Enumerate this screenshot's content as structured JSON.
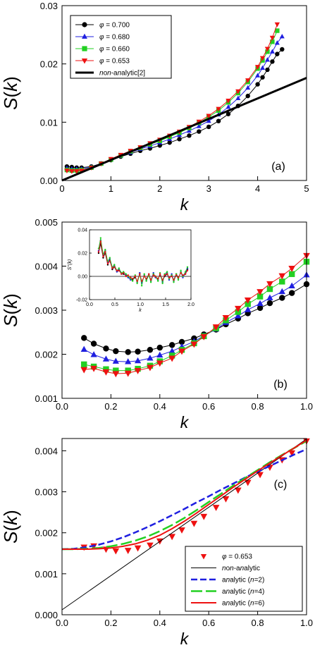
{
  "chart_data": [
    {
      "type": "line",
      "panel_label": "(a)",
      "xlabel": "k",
      "ylabel": "S(k)",
      "xlim": [
        0,
        5
      ],
      "ylim": [
        0,
        0.03
      ],
      "xticks": [
        "0",
        "1",
        "2",
        "3",
        "4",
        "5"
      ],
      "yticks": [
        "0.00",
        "0.01",
        "0.02",
        "0.03"
      ],
      "legend_position": "top-left",
      "series": [
        {
          "name": "φ = 0.700",
          "color": "#000000",
          "marker": "circle",
          "x": [
            0.1,
            0.2,
            0.3,
            0.4,
            0.6,
            0.8,
            1.0,
            1.2,
            1.4,
            1.6,
            1.8,
            2.0,
            2.2,
            2.4,
            2.6,
            2.8,
            3.0,
            3.2,
            3.4,
            3.6,
            3.8,
            4.0,
            4.1,
            4.2,
            4.3,
            4.4,
            4.5
          ],
          "y": [
            0.0024,
            0.0023,
            0.0022,
            0.0022,
            0.0024,
            0.0029,
            0.0035,
            0.0041,
            0.0046,
            0.0051,
            0.0055,
            0.006,
            0.0065,
            0.0071,
            0.0077,
            0.0084,
            0.0092,
            0.0102,
            0.0114,
            0.0128,
            0.0145,
            0.0165,
            0.0177,
            0.019,
            0.0204,
            0.0217,
            0.0225
          ]
        },
        {
          "name": "φ = 0.680",
          "color": "#1f1fe0",
          "marker": "triangle-up",
          "x": [
            0.1,
            0.2,
            0.3,
            0.4,
            0.6,
            0.8,
            1.0,
            1.2,
            1.4,
            1.6,
            1.8,
            2.0,
            2.2,
            2.4,
            2.6,
            2.8,
            3.0,
            3.2,
            3.4,
            3.6,
            3.8,
            4.0,
            4.1,
            4.2,
            4.3,
            4.4,
            4.5
          ],
          "y": [
            0.0021,
            0.002,
            0.002,
            0.002,
            0.0023,
            0.0029,
            0.0036,
            0.0042,
            0.0048,
            0.0054,
            0.0059,
            0.0065,
            0.0071,
            0.0078,
            0.0085,
            0.0093,
            0.0102,
            0.0113,
            0.0126,
            0.0141,
            0.0159,
            0.018,
            0.0193,
            0.0207,
            0.0221,
            0.0236,
            0.0247
          ]
        },
        {
          "name": "φ = 0.660",
          "color": "#22d022",
          "marker": "square",
          "x": [
            0.1,
            0.2,
            0.3,
            0.4,
            0.6,
            0.8,
            1.0,
            1.2,
            1.4,
            1.6,
            1.8,
            2.0,
            2.2,
            2.4,
            2.6,
            2.8,
            3.0,
            3.2,
            3.4,
            3.6,
            3.8,
            4.0,
            4.1,
            4.2,
            4.3,
            4.4
          ],
          "y": [
            0.0018,
            0.0017,
            0.0017,
            0.0018,
            0.0022,
            0.0029,
            0.0036,
            0.0043,
            0.005,
            0.0056,
            0.0062,
            0.0068,
            0.0075,
            0.0082,
            0.009,
            0.0099,
            0.0109,
            0.012,
            0.0134,
            0.015,
            0.0169,
            0.0192,
            0.0206,
            0.0221,
            0.0238,
            0.0257
          ]
        },
        {
          "name": "φ = 0.653",
          "color": "#ee1111",
          "marker": "triangle-down",
          "x": [
            0.1,
            0.2,
            0.3,
            0.4,
            0.6,
            0.8,
            1.0,
            1.2,
            1.4,
            1.6,
            1.8,
            2.0,
            2.2,
            2.4,
            2.6,
            2.8,
            3.0,
            3.2,
            3.4,
            3.6,
            3.8,
            4.0,
            4.1,
            4.2,
            4.3,
            4.4
          ],
          "y": [
            0.0017,
            0.0016,
            0.0016,
            0.0017,
            0.0022,
            0.0029,
            0.0037,
            0.0044,
            0.0051,
            0.0057,
            0.0064,
            0.007,
            0.0077,
            0.0084,
            0.0092,
            0.0101,
            0.0111,
            0.0123,
            0.0137,
            0.0153,
            0.0172,
            0.0195,
            0.021,
            0.0226,
            0.0245,
            0.0268
          ]
        },
        {
          "name": "non-analytic[2]",
          "color": "#000000",
          "marker": "none",
          "linewidth": 3,
          "x": [
            0,
            5
          ],
          "y": [
            0.0,
            0.0176
          ]
        }
      ]
    },
    {
      "type": "line",
      "panel_label": "(b)",
      "xlabel": "k",
      "ylabel": "S(k)",
      "xlim": [
        0,
        1
      ],
      "ylim": [
        0.001,
        0.005
      ],
      "xticks": [
        "0.0",
        "0.2",
        "0.4",
        "0.6",
        "0.8",
        "1.0"
      ],
      "yticks": [
        "0.001",
        "0.002",
        "0.003",
        "0.004",
        "0.005"
      ],
      "series": [
        {
          "name": "φ = 0.700",
          "color": "#000000",
          "marker": "circle",
          "x": [
            0.09,
            0.13,
            0.18,
            0.22,
            0.27,
            0.31,
            0.36,
            0.4,
            0.45,
            0.49,
            0.54,
            0.58,
            0.63,
            0.67,
            0.72,
            0.76,
            0.81,
            0.85,
            0.9,
            0.94,
            1.0
          ],
          "y": [
            0.00237,
            0.00224,
            0.00213,
            0.00207,
            0.00205,
            0.00206,
            0.0021,
            0.00215,
            0.00221,
            0.00228,
            0.00236,
            0.00245,
            0.00256,
            0.00268,
            0.00281,
            0.00293,
            0.00305,
            0.00316,
            0.00328,
            0.00339,
            0.00359
          ]
        },
        {
          "name": "φ = 0.680",
          "color": "#1f1fe0",
          "marker": "triangle-up",
          "x": [
            0.09,
            0.13,
            0.18,
            0.22,
            0.27,
            0.31,
            0.36,
            0.4,
            0.45,
            0.49,
            0.54,
            0.58,
            0.63,
            0.67,
            0.72,
            0.76,
            0.81,
            0.85,
            0.9,
            0.94,
            1.0
          ],
          "y": [
            0.00211,
            0.00199,
            0.00189,
            0.00184,
            0.00183,
            0.00185,
            0.00191,
            0.00198,
            0.00207,
            0.00217,
            0.00229,
            0.00242,
            0.00257,
            0.00272,
            0.00287,
            0.00301,
            0.00315,
            0.00328,
            0.00342,
            0.00355,
            0.0038
          ]
        },
        {
          "name": "φ = 0.660",
          "color": "#22d022",
          "marker": "square",
          "x": [
            0.09,
            0.13,
            0.18,
            0.22,
            0.27,
            0.31,
            0.36,
            0.4,
            0.45,
            0.49,
            0.54,
            0.58,
            0.63,
            0.67,
            0.72,
            0.76,
            0.81,
            0.85,
            0.9,
            0.94,
            1.0
          ],
          "y": [
            0.00177,
            0.00172,
            0.00166,
            0.00163,
            0.00163,
            0.00167,
            0.00174,
            0.00184,
            0.00197,
            0.0021,
            0.00225,
            0.00241,
            0.00259,
            0.00277,
            0.00296,
            0.00314,
            0.00331,
            0.00348,
            0.00365,
            0.00382,
            0.0041
          ]
        },
        {
          "name": "φ = 0.653",
          "color": "#ee1111",
          "marker": "triangle-down",
          "x": [
            0.09,
            0.13,
            0.18,
            0.22,
            0.27,
            0.31,
            0.36,
            0.4,
            0.45,
            0.49,
            0.54,
            0.58,
            0.63,
            0.67,
            0.72,
            0.76,
            0.81,
            0.85,
            0.9,
            0.94,
            1.0
          ],
          "y": [
            0.00165,
            0.00168,
            0.0016,
            0.00156,
            0.00157,
            0.00163,
            0.0017,
            0.0018,
            0.00191,
            0.00207,
            0.00223,
            0.0024,
            0.00262,
            0.00283,
            0.00304,
            0.00323,
            0.00342,
            0.0036,
            0.00378,
            0.00395,
            0.00424
          ]
        }
      ],
      "inset": {
        "type": "line",
        "xlabel": "k",
        "ylabel": "S''(k)",
        "xlim": [
          0,
          2
        ],
        "ylim": [
          -0.02,
          0.04
        ],
        "xticks": [
          "0.0",
          "0.5",
          "1.0",
          "1.5",
          "2.0"
        ],
        "yticks": [
          "-0.02",
          "0.00",
          "0.02",
          "0.04"
        ],
        "x": [
          0.18,
          0.22,
          0.27,
          0.31,
          0.36,
          0.4,
          0.45,
          0.49,
          0.54,
          0.58,
          0.63,
          0.67,
          0.72,
          0.76,
          0.81,
          0.85,
          0.9,
          0.94,
          0.99,
          1.03,
          1.08,
          1.12,
          1.17,
          1.21,
          1.26,
          1.3,
          1.35,
          1.39,
          1.44,
          1.48,
          1.53,
          1.57,
          1.62,
          1.66,
          1.71,
          1.75,
          1.8,
          1.84,
          1.89,
          1.93
        ],
        "series": [
          {
            "name": "φ = 0.700",
            "color": "#000000",
            "y": [
              0.02,
              0.028,
              0.016,
              0.02,
              0.01,
              0.014,
              0.006,
              0.008,
              0.004,
              0.005,
              0.003,
              0.002,
              0.001,
              0.0,
              -0.002,
              -0.003,
              -0.001,
              -0.004,
              0.002,
              -0.005,
              0.0,
              -0.002,
              0.001,
              -0.003,
              0.002,
              0.0,
              -0.002,
              0.001,
              -0.004,
              0.0,
              0.002,
              -0.002,
              0.001,
              -0.003,
              0.002,
              -0.001,
              0.003,
              0.0,
              0.002,
              0.006
            ]
          },
          {
            "name": "φ = 0.680",
            "color": "#1f1fe0",
            "y": [
              0.022,
              0.031,
              0.018,
              0.022,
              0.012,
              0.015,
              0.007,
              0.009,
              0.004,
              0.006,
              0.002,
              0.003,
              0.001,
              -0.001,
              -0.003,
              -0.002,
              0.0,
              -0.005,
              0.003,
              -0.006,
              0.001,
              -0.003,
              0.002,
              -0.004,
              0.003,
              -0.001,
              -0.003,
              0.002,
              -0.005,
              0.001,
              0.003,
              -0.003,
              0.002,
              -0.004,
              0.001,
              -0.002,
              0.004,
              -0.001,
              0.003,
              0.007
            ]
          },
          {
            "name": "φ = 0.660",
            "color": "#22d022",
            "y": [
              0.024,
              0.033,
              0.019,
              0.023,
              0.013,
              0.016,
              0.008,
              0.01,
              0.005,
              0.007,
              0.003,
              0.004,
              0.002,
              0.0,
              -0.002,
              -0.004,
              0.001,
              -0.006,
              0.002,
              -0.008,
              0.002,
              -0.004,
              0.001,
              -0.005,
              0.002,
              0.0,
              -0.004,
              0.003,
              -0.006,
              0.002,
              0.004,
              -0.002,
              0.001,
              -0.005,
              0.002,
              -0.003,
              0.005,
              0.0,
              0.004,
              0.008
            ]
          },
          {
            "name": "φ = 0.653",
            "color": "#ee1111",
            "y": [
              0.021,
              0.03,
              0.017,
              0.021,
              0.011,
              0.013,
              0.007,
              0.008,
              0.005,
              0.005,
              0.002,
              0.003,
              0.0,
              0.001,
              -0.001,
              -0.002,
              0.0,
              -0.004,
              0.002,
              -0.004,
              0.0,
              -0.002,
              0.002,
              -0.003,
              0.001,
              0.0,
              -0.002,
              0.002,
              -0.003,
              0.001,
              0.002,
              -0.001,
              0.0,
              -0.003,
              0.001,
              -0.001,
              0.003,
              0.001,
              0.002,
              0.005
            ]
          }
        ]
      }
    },
    {
      "type": "line",
      "panel_label": "(c)",
      "xlabel": "k",
      "ylabel": "S(k)",
      "xlim": [
        0,
        1
      ],
      "ylim": [
        0,
        0.0043
      ],
      "xticks": [
        "0.0",
        "0.2",
        "0.4",
        "0.6",
        "0.8",
        "1.0"
      ],
      "yticks": [
        "0.000",
        "0.001",
        "0.002",
        "0.003",
        "0.004"
      ],
      "legend_position": "bottom-right",
      "series": [
        {
          "name": "φ = 0.653",
          "color": "#ee1111",
          "marker": "triangle-down",
          "line": "none",
          "x": [
            0.09,
            0.13,
            0.18,
            0.22,
            0.27,
            0.31,
            0.36,
            0.4,
            0.45,
            0.49,
            0.54,
            0.58,
            0.63,
            0.67,
            0.72,
            0.76,
            0.81,
            0.85,
            0.9,
            0.94,
            1.0
          ],
          "y": [
            0.00165,
            0.00168,
            0.0016,
            0.00156,
            0.00157,
            0.00163,
            0.0017,
            0.0018,
            0.00191,
            0.00207,
            0.00223,
            0.0024,
            0.00262,
            0.00283,
            0.00304,
            0.00323,
            0.00342,
            0.0036,
            0.00378,
            0.00395,
            0.00424
          ]
        },
        {
          "name": "non-analytic",
          "color": "#000000",
          "style": "solid",
          "linewidth": 1,
          "x": [
            0.0,
            1.0
          ],
          "y": [
            0.00012,
            0.00429
          ]
        },
        {
          "name": "analytic (n=2)",
          "color": "#1f1fe0",
          "style": "dashed",
          "linewidth": 2.5,
          "x": [
            0.0,
            0.05,
            0.1,
            0.15,
            0.2,
            0.25,
            0.3,
            0.35,
            0.4,
            0.45,
            0.5,
            0.55,
            0.6,
            0.65,
            0.7,
            0.75,
            0.8,
            0.85,
            0.9,
            0.95,
            1.0
          ],
          "y": [
            0.0016,
            0.00161,
            0.00165,
            0.00171,
            0.00179,
            0.00189,
            0.00201,
            0.00214,
            0.00228,
            0.00243,
            0.00258,
            0.00274,
            0.00289,
            0.00305,
            0.0032,
            0.00335,
            0.00349,
            0.00363,
            0.00377,
            0.00391,
            0.00404
          ]
        },
        {
          "name": "analytic (n=4)",
          "color": "#22d022",
          "style": "long-dashed",
          "linewidth": 2.5,
          "x": [
            0.0,
            0.05,
            0.1,
            0.15,
            0.2,
            0.25,
            0.3,
            0.35,
            0.4,
            0.45,
            0.5,
            0.55,
            0.6,
            0.65,
            0.7,
            0.75,
            0.8,
            0.85,
            0.9,
            0.95,
            1.0
          ],
          "y": [
            0.0016,
            0.0016,
            0.00161,
            0.00163,
            0.00167,
            0.00173,
            0.00181,
            0.00191,
            0.00204,
            0.00219,
            0.00236,
            0.00255,
            0.00275,
            0.00295,
            0.00315,
            0.00334,
            0.00353,
            0.00372,
            0.0039,
            0.00407,
            0.00424
          ]
        },
        {
          "name": "analytic (n=6)",
          "color": "#ee1111",
          "style": "solid",
          "linewidth": 2,
          "x": [
            0.0,
            0.05,
            0.1,
            0.15,
            0.2,
            0.25,
            0.3,
            0.35,
            0.4,
            0.45,
            0.5,
            0.55,
            0.6,
            0.65,
            0.7,
            0.75,
            0.8,
            0.85,
            0.9,
            0.95,
            1.0
          ],
          "y": [
            0.0016,
            0.0016,
            0.0016,
            0.00161,
            0.00163,
            0.00167,
            0.00173,
            0.00182,
            0.00194,
            0.0021,
            0.00228,
            0.00248,
            0.00269,
            0.0029,
            0.00311,
            0.00331,
            0.00351,
            0.0037,
            0.00389,
            0.00407,
            0.00426
          ]
        }
      ]
    }
  ]
}
